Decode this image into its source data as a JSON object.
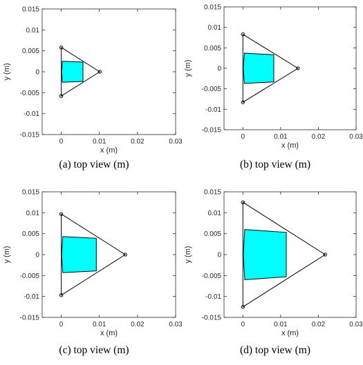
{
  "chart_data": [
    {
      "type": "scatter",
      "caption": "(a) top view (m)",
      "xlabel": "x (m)",
      "ylabel": "y (m)",
      "xlim": [
        -0.005,
        0.03
      ],
      "ylim": [
        -0.015,
        0.015
      ],
      "xticks": [
        "0",
        "0.01",
        "0.02",
        "0.03"
      ],
      "yticks": [
        "0.015",
        "0.01",
        "0.005",
        "0",
        "-0.005",
        "-0.01",
        "-0.015"
      ],
      "triangle": [
        [
          0,
          0.0058
        ],
        [
          0.0101,
          0
        ],
        [
          0,
          -0.0058
        ]
      ],
      "fill_region": [
        [
          0.0003,
          0.0025
        ],
        [
          0.0057,
          0.0023
        ],
        [
          0.0057,
          -0.0023
        ],
        [
          0.0003,
          -0.0025
        ],
        [
          0.0001,
          0
        ]
      ],
      "fill_color": "#00FFFF"
    },
    {
      "type": "scatter",
      "caption": "(b) top view (m)",
      "xlabel": "x (m)",
      "ylabel": "y (m)",
      "xlim": [
        -0.005,
        0.03
      ],
      "ylim": [
        -0.015,
        0.015
      ],
      "xticks": [
        "0",
        "0.01",
        "0.02",
        "0.03"
      ],
      "yticks": [
        "0.015",
        "0.01",
        "0.005",
        "0",
        "-0.005",
        "-0.01",
        "-0.015"
      ],
      "triangle": [
        [
          0,
          0.0083
        ],
        [
          0.0146,
          0
        ],
        [
          0,
          -0.0083
        ]
      ],
      "fill_region": [
        [
          0.0004,
          0.0037
        ],
        [
          0.0082,
          0.0033
        ],
        [
          0.0082,
          -0.0033
        ],
        [
          0.0004,
          -0.0037
        ],
        [
          0.0001,
          0
        ]
      ],
      "fill_color": "#00FFFF"
    },
    {
      "type": "scatter",
      "caption": "(c) top view (m)",
      "xlabel": "x (m)",
      "ylabel": "y (m)",
      "xlim": [
        -0.005,
        0.03
      ],
      "ylim": [
        -0.015,
        0.015
      ],
      "xticks": [
        "0",
        "0.01",
        "0.02",
        "0.03"
      ],
      "yticks": [
        "0.015",
        "0.01",
        "0.005",
        "0",
        "-0.005",
        "-0.01",
        "-0.015"
      ],
      "triangle": [
        [
          0,
          0.0097
        ],
        [
          0.0168,
          0
        ],
        [
          0,
          -0.0097
        ]
      ],
      "fill_region": [
        [
          0.0004,
          0.0043
        ],
        [
          0.0092,
          0.0039
        ],
        [
          0.0092,
          -0.0039
        ],
        [
          0.0004,
          -0.0043
        ],
        [
          0.0001,
          0
        ]
      ],
      "fill_color": "#00FFFF"
    },
    {
      "type": "scatter",
      "caption": "(d) top view (m)",
      "xlabel": "x (m)",
      "ylabel": "y (m)",
      "xlim": [
        -0.005,
        0.03
      ],
      "ylim": [
        -0.015,
        0.015
      ],
      "xticks": [
        "0",
        "0.01",
        "0.02",
        "0.03"
      ],
      "yticks": [
        "0.015",
        "0.01",
        "0.005",
        "0",
        "-0.005",
        "-0.01",
        "-0.015"
      ],
      "triangle": [
        [
          0,
          0.0125
        ],
        [
          0.0218,
          0
        ],
        [
          0,
          -0.0125
        ]
      ],
      "fill_region": [
        [
          0.0005,
          0.006
        ],
        [
          0.0115,
          0.0053
        ],
        [
          0.0115,
          -0.0053
        ],
        [
          0.0005,
          -0.006
        ],
        [
          0.0001,
          0
        ]
      ],
      "fill_color": "#00FFFF"
    }
  ]
}
